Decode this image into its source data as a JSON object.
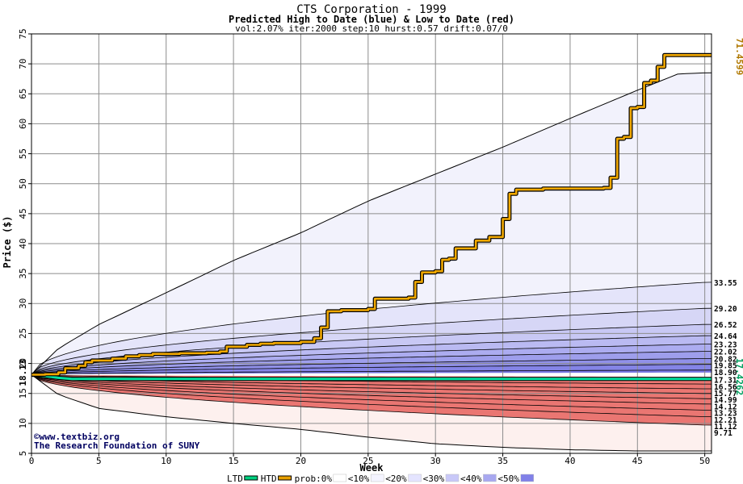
{
  "chart_data": {
    "type": "area",
    "title": "CTS Corporation - 1999",
    "subtitle": "Predicted High to Date (blue) &  Low to Date (red)",
    "params": "vol:2.07% iter:2000 step:10 hurst:0.57 drift:0.07/0",
    "xlabel": "Week",
    "ylabel": "Price ($)",
    "xlim": [
      0,
      50.5
    ],
    "ylim": [
      5,
      75
    ],
    "x_ticks": [
      0,
      5,
      10,
      15,
      20,
      25,
      30,
      35,
      40,
      45,
      50
    ],
    "y_ticks": [
      5,
      10,
      15,
      20,
      25,
      30,
      35,
      40,
      45,
      50,
      55,
      60,
      65,
      70,
      75
    ],
    "grid": true,
    "start_price_label": "18.13",
    "start_price": 18.13,
    "htd_end_label": "71.4599",
    "htd_end": 71.4599,
    "ltd_end_label": "17.4262",
    "ltd_end": 17.4262,
    "high_band_envelope": {
      "x": [
        0,
        2,
        5,
        10,
        15,
        20,
        25,
        30,
        35,
        40,
        45,
        48,
        50
      ],
      "y": [
        18.13,
        22.5,
        26.5,
        31.8,
        37.2,
        41.8,
        47.1,
        51.6,
        56.1,
        60.9,
        65.6,
        68.3,
        68.5
      ]
    },
    "low_band_envelope": {
      "x": [
        0,
        2,
        5,
        10,
        15,
        20,
        25,
        30,
        35,
        40,
        45,
        50
      ],
      "y": [
        18.13,
        14.8,
        12.5,
        11.1,
        10.0,
        9.0,
        7.7,
        6.6,
        6.0,
        5.6,
        5.4,
        5.4
      ]
    },
    "percentile_levels_high": [
      {
        "label": "33.55",
        "value": 33.55
      },
      {
        "label": "29.20",
        "value": 29.2
      },
      {
        "label": "26.52",
        "value": 26.52
      },
      {
        "label": "24.64",
        "value": 24.64
      },
      {
        "label": "23.23",
        "value": 23.23
      },
      {
        "label": "22.02",
        "value": 22.02
      },
      {
        "label": "20.82",
        "value": 20.82
      },
      {
        "label": "19.85",
        "value": 19.85
      },
      {
        "label": "18.90",
        "value": 18.9
      }
    ],
    "percentile_levels_low": [
      {
        "label": "17.31",
        "value": 17.31
      },
      {
        "label": "16.56",
        "value": 16.56
      },
      {
        "label": "15.77",
        "value": 15.77
      },
      {
        "label": "14.99",
        "value": 14.99
      },
      {
        "label": "14.12",
        "value": 14.12
      },
      {
        "label": "13.23",
        "value": 13.23
      },
      {
        "label": "12.21",
        "value": 12.21
      },
      {
        "label": "11.12",
        "value": 11.12
      },
      {
        "label": "9.71",
        "value": 9.71
      }
    ],
    "htd_series": {
      "name": "HTD",
      "x": [
        0,
        1,
        2,
        2.5,
        3.5,
        4,
        4.5,
        6,
        7,
        8,
        9,
        10,
        11,
        13,
        14,
        14.5,
        16,
        17,
        18,
        20,
        21,
        21.5,
        22,
        23,
        25,
        25.5,
        28,
        28.5,
        29,
        30,
        30.5,
        31,
        31.5,
        33,
        34,
        35,
        35.5,
        36,
        38,
        42.5,
        43,
        43.5,
        44,
        44.5,
        45,
        45.5,
        46,
        46.5,
        47,
        50.5
      ],
      "y": [
        18.13,
        18.2,
        18.5,
        19.2,
        19.6,
        20.2,
        20.5,
        20.8,
        21.2,
        21.4,
        21.6,
        21.6,
        21.7,
        21.8,
        22.0,
        22.8,
        23.1,
        23.3,
        23.4,
        23.6,
        24.2,
        26.0,
        28.7,
        28.9,
        29.1,
        30.8,
        31.0,
        33.6,
        35.2,
        35.4,
        37.3,
        37.5,
        39.2,
        40.5,
        41.1,
        44.1,
        48.3,
        49.0,
        49.2,
        49.3,
        51.0,
        57.5,
        57.8,
        62.6,
        62.8,
        66.8,
        67.2,
        69.5,
        71.46,
        71.46
      ]
    },
    "ltd_series": {
      "name": "LTD",
      "x": [
        0,
        1,
        2,
        3,
        50.5
      ],
      "y": [
        18.13,
        17.9,
        17.6,
        17.43,
        17.43
      ]
    },
    "legend": {
      "placement": "bottom",
      "entries": [
        {
          "label": "LTD",
          "color": "#00d080"
        },
        {
          "label": "HTD",
          "color": "#e8a000"
        },
        {
          "label": "prob:0%",
          "color": "#ffffff"
        },
        {
          "label": "<10%",
          "color": "#f4f4ff"
        },
        {
          "label": "<20%",
          "color": "#e4e4ff"
        },
        {
          "label": "<30%",
          "color": "#c8c8f8"
        },
        {
          "label": "<40%",
          "color": "#a8a8f0"
        },
        {
          "label": "<50%",
          "color": "#8080e8"
        }
      ]
    },
    "watermark_lines": [
      "©www.textbiz.org",
      "The Research Foundation of SUNY"
    ]
  }
}
